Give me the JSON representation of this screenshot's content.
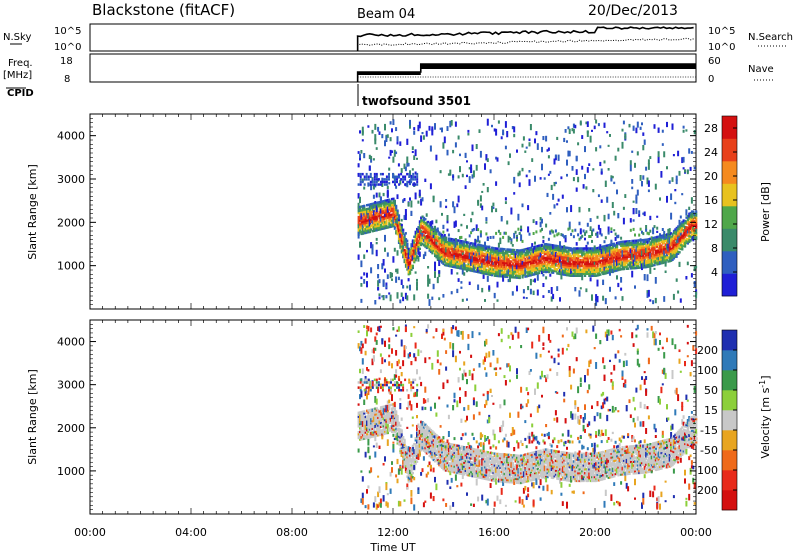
{
  "header": {
    "station": "Blackstone (fitACF)",
    "beam": "Beam 04",
    "date": "20/Dec/2013"
  },
  "summary_panels": {
    "nsky_label": "N.Sky",
    "nsky_ticks": [
      "10^5",
      "10^0"
    ],
    "nsearch_label": "N.Search",
    "nsearch_ticks": [
      "10^5",
      "10^0"
    ],
    "freq_label": "Freq.",
    "freq_unit": "[MHz]",
    "freq_ticks": [
      "18",
      "8"
    ],
    "nave_label": "Nave",
    "nave_ticks": [
      "60",
      "0"
    ],
    "cpid_label": "CPID",
    "cpid_value": "twofsound 3501"
  },
  "colors": {
    "power_scale": [
      "#1f1fd6",
      "#2f5fbf",
      "#3a8a6a",
      "#4fa74a",
      "#e8c21f",
      "#f58a1f",
      "#e8401a",
      "#d41010"
    ],
    "velocity_scale": [
      "#1f2fb0",
      "#2f7ab8",
      "#3a9a4a",
      "#8ccf3a",
      "#c8c8c8",
      "#e8a520",
      "#ef6a1a",
      "#e82a1a",
      "#d40f0f"
    ]
  },
  "chart_data": [
    {
      "type": "heatmap",
      "quantity": "Power",
      "xlabel": "Time UT",
      "ylabel": "Slant Range [km]",
      "xticks": [
        "00:00",
        "04:00",
        "08:00",
        "12:00",
        "16:00",
        "20:00",
        "00:00"
      ],
      "xlim_hours": [
        0,
        24
      ],
      "ylim": [
        0,
        4500
      ],
      "yticks": [
        1000,
        2000,
        3000,
        4000
      ],
      "colorbar_label": "Power [dB]",
      "colorbar_ticks": [
        4,
        8,
        12,
        16,
        20,
        24,
        28
      ],
      "colorbar_range": [
        0,
        30
      ],
      "data_start_hour": 10.6,
      "main_echo_band": {
        "time_hours": [
          10.6,
          12.0,
          12.6,
          13.1,
          14.0,
          16.0,
          17.0,
          18.0,
          19.0,
          20.0,
          21.0,
          22.0,
          23.0,
          23.8
        ],
        "range_km": [
          2000,
          2200,
          1000,
          1800,
          1300,
          1050,
          1000,
          1150,
          1050,
          1050,
          1200,
          1250,
          1400,
          1900
        ]
      }
    },
    {
      "type": "heatmap",
      "quantity": "Velocity",
      "xlabel": "Time UT",
      "ylabel": "Slant Range [km]",
      "xticks": [
        "00:00",
        "04:00",
        "08:00",
        "12:00",
        "16:00",
        "20:00",
        "00:00"
      ],
      "xlim_hours": [
        0,
        24
      ],
      "ylim": [
        0,
        4500
      ],
      "yticks": [
        1000,
        2000,
        3000,
        4000
      ],
      "colorbar_label": "Velocity [m s^-1]",
      "colorbar_ticks": [
        200,
        100,
        50,
        15,
        -15,
        -50,
        -100,
        -200
      ],
      "data_start_hour": 10.6
    }
  ]
}
